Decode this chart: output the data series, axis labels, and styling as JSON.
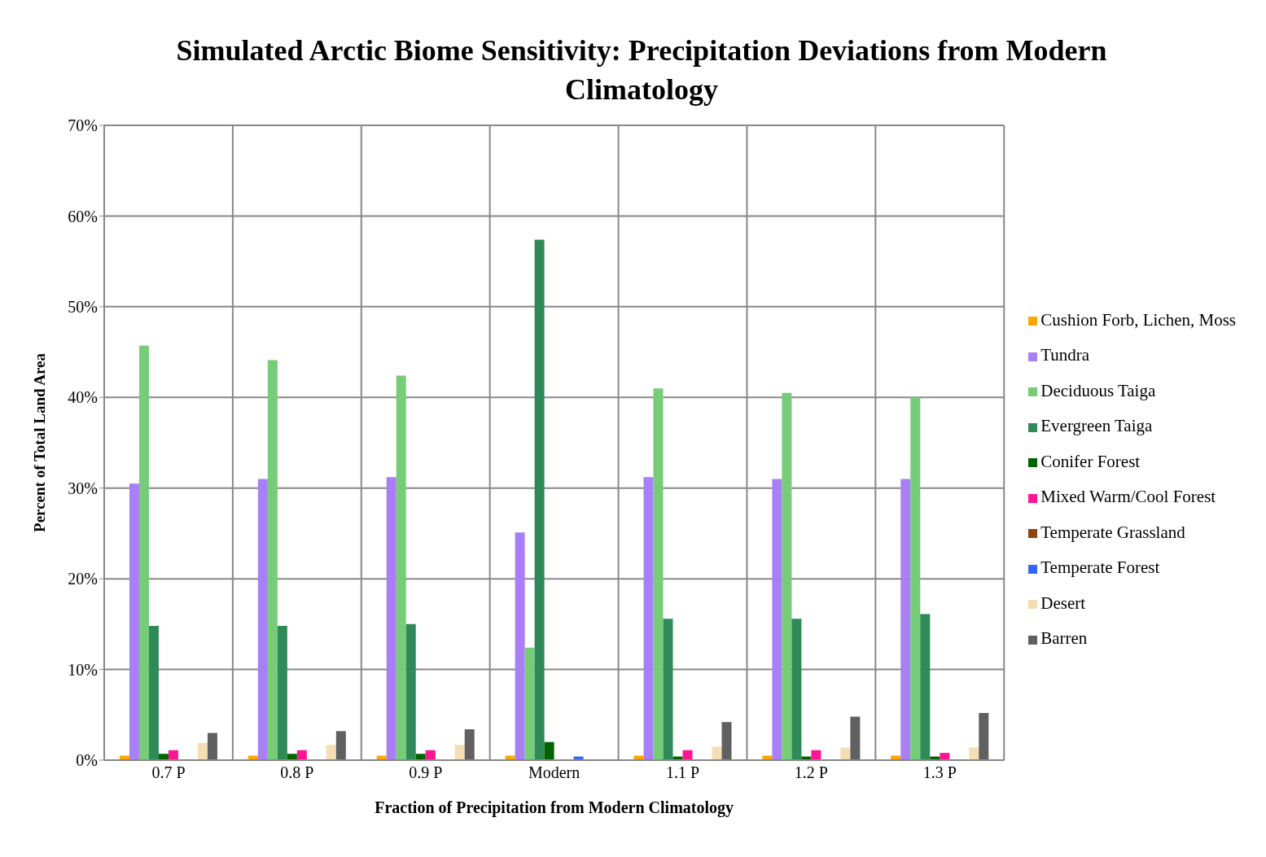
{
  "chart_data": {
    "type": "bar",
    "title": "Simulated Arctic Biome Sensitivity: Precipitation Deviations from Modern Climatology",
    "xlabel": "Fraction of Precipitation from Modern Climatology",
    "ylabel": "Percent of Total Land Area",
    "categories": [
      "0.7 P",
      "0.8 P",
      "0.9 P",
      "Modern",
      "1.1 P",
      "1.2 P",
      "1.3 P"
    ],
    "series": [
      {
        "name": "Cushion Forb, Lichen, Moss",
        "color": "#ffa500",
        "values": [
          0.5,
          0.5,
          0.5,
          0.5,
          0.5,
          0.5,
          0.5
        ]
      },
      {
        "name": "Tundra",
        "color": "#a97ff7",
        "values": [
          30.5,
          31.0,
          31.2,
          25.1,
          31.2,
          31.0,
          31.0
        ]
      },
      {
        "name": "Deciduous Taiga",
        "color": "#77cc77",
        "values": [
          45.7,
          44.1,
          42.4,
          12.4,
          41.0,
          40.5,
          40.0
        ]
      },
      {
        "name": "Evergreen Taiga",
        "color": "#2e8b57",
        "values": [
          14.8,
          14.8,
          15.0,
          57.4,
          15.6,
          15.6,
          16.1
        ]
      },
      {
        "name": "Conifer Forest",
        "color": "#006400",
        "values": [
          0.7,
          0.7,
          0.7,
          2.0,
          0.4,
          0.4,
          0.4
        ]
      },
      {
        "name": "Mixed Warm/Cool Forest",
        "color": "#ff1493",
        "values": [
          1.1,
          1.1,
          1.1,
          0,
          1.1,
          1.1,
          0.8
        ]
      },
      {
        "name": "Temperate Grassland",
        "color": "#8b4513",
        "values": [
          0,
          0,
          0,
          0,
          0,
          0,
          0
        ]
      },
      {
        "name": "Temperate Forest",
        "color": "#3366ff",
        "values": [
          0,
          0,
          0,
          0.4,
          0,
          0,
          0
        ]
      },
      {
        "name": "Desert",
        "color": "#f5deb3",
        "values": [
          1.9,
          1.7,
          1.7,
          0,
          1.5,
          1.4,
          1.4
        ]
      },
      {
        "name": "Barren",
        "color": "#606060",
        "values": [
          3.0,
          3.2,
          3.4,
          0,
          4.2,
          4.8,
          5.2
        ]
      }
    ],
    "ylim": [
      0,
      70
    ],
    "yticks": [
      {
        "value": 0,
        "label": "0%"
      },
      {
        "value": 10,
        "label": "10%"
      },
      {
        "value": 20,
        "label": "20%"
      },
      {
        "value": 30,
        "label": "30%"
      },
      {
        "value": 40,
        "label": "40%"
      },
      {
        "value": 50,
        "label": "50%"
      },
      {
        "value": 60,
        "label": "60%"
      },
      {
        "value": 70,
        "label": "70%"
      }
    ],
    "grid": true,
    "legend": "right"
  }
}
